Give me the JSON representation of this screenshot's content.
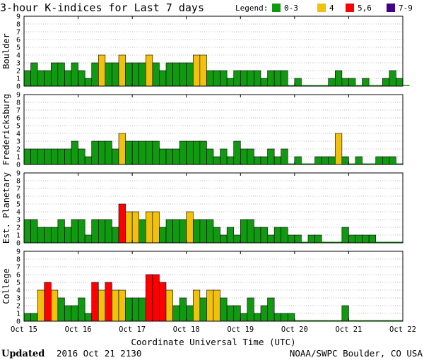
{
  "chart_data": {
    "type": "bar",
    "title": "3-hour K-indices for Last 7 days",
    "legend": {
      "label": "Legend:",
      "placement": "top-right",
      "items": [
        {
          "label": "0-3",
          "color": "#119911"
        },
        {
          "label": "4",
          "color": "#F2C10D"
        },
        {
          "label": "5,6",
          "color": "#FF0000"
        },
        {
          "label": "7-9",
          "color": "#440088"
        }
      ]
    },
    "xlabel": "Coordinate Universal Time (UTC)",
    "x_ticks": [
      "Oct 15",
      "Oct 16",
      "Oct 17",
      "Oct 18",
      "Oct 19",
      "Oct 20",
      "Oct 21",
      "Oct 22"
    ],
    "ylim": [
      0,
      9
    ],
    "y_ticks": [
      "0",
      "1",
      "2",
      "3",
      "4",
      "5",
      "6",
      "7",
      "8",
      "9"
    ],
    "grid": "horizontal",
    "intervals_per_day": 8,
    "series": [
      {
        "name": "Boulder",
        "values": [
          2,
          3,
          2,
          2,
          3,
          3,
          2,
          3,
          2,
          1,
          3,
          4,
          3,
          3,
          4,
          3,
          3,
          3,
          4,
          3,
          2,
          3,
          3,
          3,
          3,
          4,
          4,
          2,
          2,
          2,
          1,
          2,
          2,
          2,
          2,
          1,
          2,
          2,
          2,
          0,
          1,
          0,
          0,
          0,
          0,
          1,
          2,
          1,
          1,
          0,
          1,
          0,
          0,
          1,
          2,
          1,
          0
        ]
      },
      {
        "name": "Fredericksburg",
        "values": [
          2,
          2,
          2,
          2,
          2,
          2,
          2,
          3,
          2,
          1,
          3,
          3,
          3,
          2,
          4,
          3,
          3,
          3,
          3,
          3,
          2,
          2,
          2,
          3,
          3,
          3,
          3,
          2,
          1,
          2,
          1,
          3,
          2,
          2,
          1,
          1,
          2,
          1,
          2,
          0,
          1,
          0,
          0,
          1,
          1,
          1,
          4,
          1,
          0,
          1,
          0,
          0,
          1,
          1,
          1,
          0
        ]
      },
      {
        "name": "Est. Planetary",
        "values": [
          3,
          3,
          2,
          2,
          2,
          3,
          2,
          3,
          3,
          1,
          3,
          3,
          3,
          2,
          5,
          4,
          4,
          3,
          4,
          4,
          2,
          3,
          3,
          3,
          4,
          3,
          3,
          3,
          2,
          1,
          2,
          1,
          3,
          3,
          2,
          2,
          1,
          2,
          2,
          1,
          1,
          0,
          1,
          1,
          0,
          0,
          0,
          2,
          1,
          1,
          1,
          1,
          0,
          0,
          0,
          0
        ]
      },
      {
        "name": "College",
        "values": [
          1,
          1,
          4,
          5,
          4,
          3,
          2,
          2,
          3,
          1,
          5,
          4,
          5,
          4,
          4,
          3,
          3,
          3,
          6,
          6,
          5,
          4,
          2,
          3,
          2,
          4,
          3,
          4,
          4,
          3,
          2,
          2,
          1,
          3,
          1,
          2,
          3,
          1,
          1,
          1,
          0,
          0,
          0,
          0,
          0,
          0,
          0,
          2,
          0,
          0,
          0,
          0,
          0,
          0,
          0,
          0
        ]
      }
    ]
  },
  "footer": {
    "updated_label": "Updated",
    "updated_value": "2016 Oct 21 2130",
    "source": "NOAA/SWPC Boulder, CO USA"
  }
}
